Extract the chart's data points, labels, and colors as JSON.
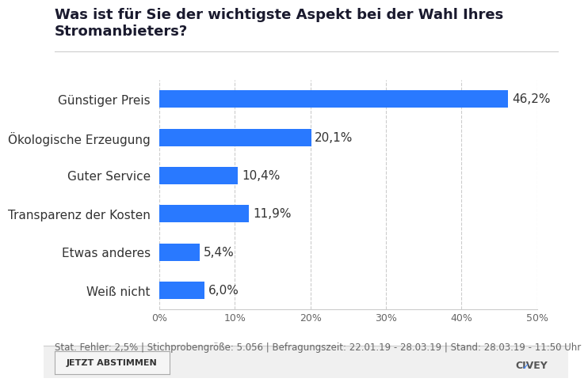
{
  "title": "Was ist für Sie der wichtigste Aspekt bei der Wahl Ihres Stromanbieters?",
  "categories": [
    "Günstiger Preis",
    "Ökologische Erzeugung",
    "Guter Service",
    "Transparenz der Kosten",
    "Etwas anderes",
    "Weiß nicht"
  ],
  "values": [
    46.2,
    20.1,
    10.4,
    11.9,
    5.4,
    6.0
  ],
  "labels": [
    "46,2%",
    "20,1%",
    "10,4%",
    "11,9%",
    "5,4%",
    "6,0%"
  ],
  "bar_color": "#2979FF",
  "background_color": "#FFFFFF",
  "plot_bg_color": "#FFFFFF",
  "title_color": "#1a1a2e",
  "label_color": "#333333",
  "value_color": "#333333",
  "footer_text": "Stat. Fehler: 2,5% | Stichprobengröße: 5.056 | Befragungszeit: 22.01.19 - 28.03.19 | Stand: 28.03.19 - 11:50 Uhr",
  "footer_color": "#666666",
  "xlim": [
    0,
    50
  ],
  "xticks": [
    0,
    10,
    20,
    30,
    40,
    50
  ],
  "xticklabels": [
    "0%",
    "10%",
    "20%",
    "30%",
    "40%",
    "50%"
  ],
  "grid_color": "#cccccc",
  "title_fontsize": 13,
  "label_fontsize": 11,
  "value_fontsize": 11,
  "footer_fontsize": 8.5,
  "bar_height": 0.45,
  "button_text": "JETZT ABSTIMMEN",
  "civey_text": "CIVEY"
}
